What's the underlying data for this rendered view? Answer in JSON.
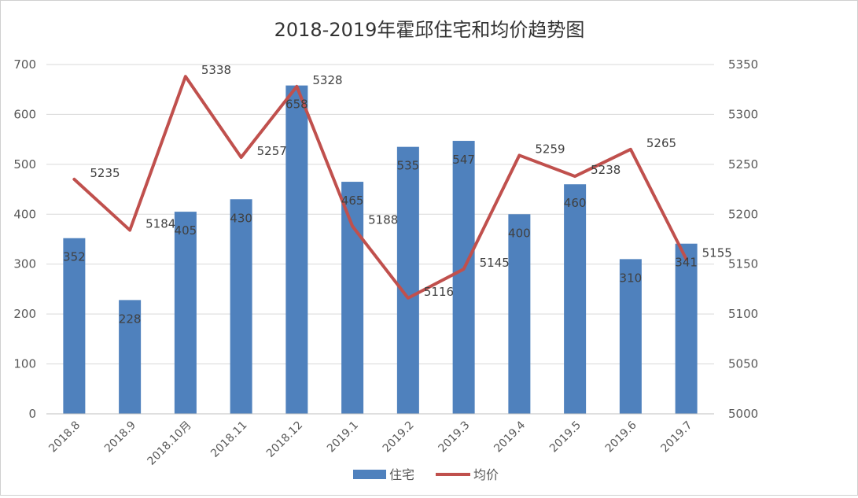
{
  "chart_data": {
    "type": "bar+line",
    "title": "2018-2019年霍邱住宅和均价趋势图",
    "categories": [
      "2018.8",
      "2018.9",
      "2018.10月",
      "2018.11",
      "2018.12",
      "2019.1",
      "2019.2",
      "2019.3",
      "2019.4",
      "2019.5",
      "2019.6",
      "2019.7"
    ],
    "series": [
      {
        "name": "住宅",
        "type": "bar",
        "axis": "left",
        "color": "#4f81bd",
        "values": [
          352,
          228,
          405,
          430,
          658,
          465,
          535,
          547,
          400,
          460,
          310,
          341
        ]
      },
      {
        "name": "均价",
        "type": "line",
        "axis": "right",
        "color": "#c0504d",
        "values": [
          5235,
          5184,
          5338,
          5257,
          5328,
          5188,
          5116,
          5145,
          5259,
          5238,
          5265,
          5155
        ]
      }
    ],
    "y_left": {
      "min": 0,
      "max": 700,
      "ticks": [
        "0",
        "100",
        "200",
        "300",
        "400",
        "500",
        "600",
        "700"
      ]
    },
    "y_right": {
      "min": 5000,
      "max": 5350,
      "ticks": [
        "5000",
        "5050",
        "5100",
        "5150",
        "5200",
        "5250",
        "5300",
        "5350"
      ]
    },
    "grid": true,
    "legend_position": "bottom"
  }
}
